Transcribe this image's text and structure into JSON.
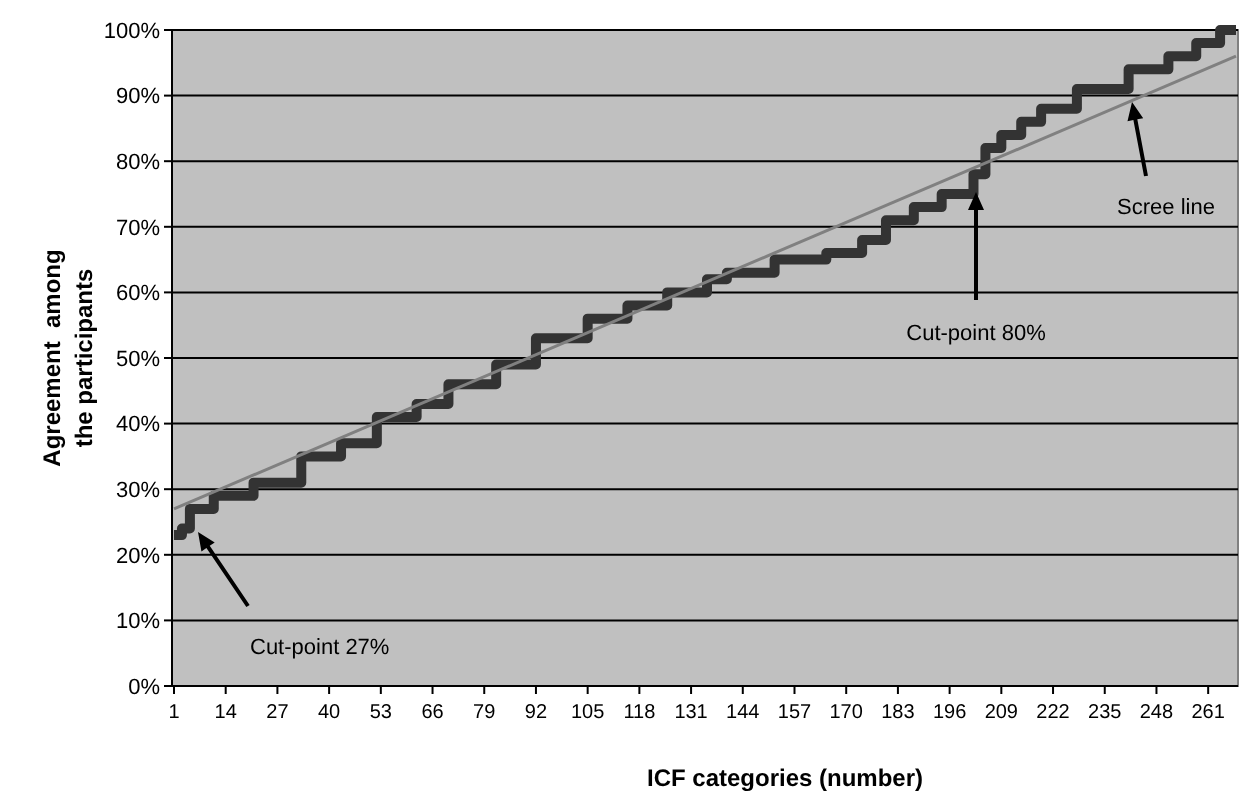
{
  "chart_data": {
    "type": "step",
    "xlabel": "ICF categories (number)",
    "ylabel": "Agreement  among the participants",
    "xlim": [
      0.5,
      268.5
    ],
    "xticks": [
      1,
      14,
      27,
      40,
      53,
      66,
      79,
      92,
      105,
      118,
      131,
      144,
      157,
      170,
      183,
      196,
      209,
      222,
      235,
      248,
      261
    ],
    "ylim": [
      0,
      100
    ],
    "yticks": [
      {
        "value": 0,
        "label": "0%"
      },
      {
        "value": 10,
        "label": "10%"
      },
      {
        "value": 20,
        "label": "20%"
      },
      {
        "value": 30,
        "label": "30%"
      },
      {
        "value": 40,
        "label": "40%"
      },
      {
        "value": 50,
        "label": "50%"
      },
      {
        "value": 60,
        "label": "60%"
      },
      {
        "value": 70,
        "label": "70%"
      },
      {
        "value": 80,
        "label": "80%"
      },
      {
        "value": 90,
        "label": "90%"
      },
      {
        "value": 100,
        "label": "100%"
      }
    ],
    "grid": "y",
    "series": [
      {
        "type": "step",
        "color": "#333333",
        "x": [
          1,
          3,
          5,
          11,
          21,
          33,
          43,
          52,
          62,
          70,
          82,
          92,
          105,
          115,
          125,
          135,
          140,
          152,
          165,
          174,
          180,
          187,
          194,
          202,
          205,
          209,
          214,
          219,
          228,
          241,
          251,
          258,
          264,
          268
        ],
        "values": [
          23,
          24,
          27,
          29,
          31,
          35,
          37,
          41,
          43,
          46,
          49,
          53,
          56,
          58,
          60,
          62,
          63,
          65,
          66,
          68,
          71,
          73,
          75,
          78,
          82,
          84,
          86,
          88,
          91,
          94,
          96,
          98,
          100,
          100
        ]
      },
      {
        "type": "line",
        "color": "#808080",
        "x": [
          1,
          268
        ],
        "values": [
          27,
          96
        ]
      }
    ],
    "annotations": [
      "Cut-point 27%",
      "Cut-point 80%",
      "Scree line"
    ]
  }
}
